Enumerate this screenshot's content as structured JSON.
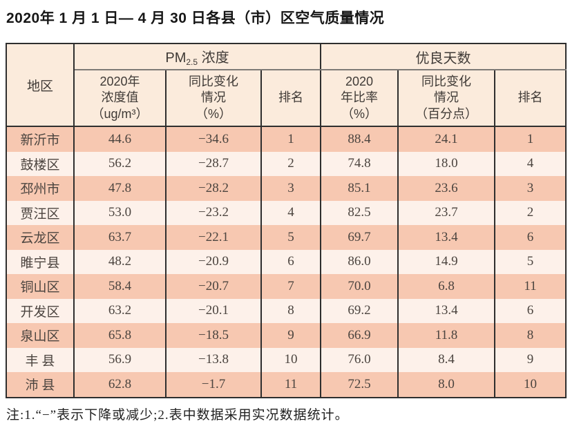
{
  "title": "2020年 1 月 1 日— 4 月 30 日各县（市）区空气质量情况",
  "note": "注:1.“−”表示下降或减少;2.表中数据采用实况数据统计。",
  "colors": {
    "row_salmon": "#f7c8b1",
    "row_light": "#fdf1ea",
    "header_bg": "#fbebdc",
    "border": "#2e2e2e",
    "text": "#4b443f"
  },
  "table": {
    "header": {
      "region": "地区",
      "pm_group_prefix": "PM",
      "pm_group_sub": "2.5",
      "pm_group_suffix": " 浓度",
      "good_days_group": "优良天数",
      "pm_value": "2020年\n浓度值\n（ug/m³）",
      "pm_change": "同比变化\n情况\n（%）",
      "pm_rank": "排名",
      "gd_ratio": "2020\n年比率\n（%）",
      "gd_change": "同比变化\n情况\n（百分点）",
      "gd_rank": "排名"
    },
    "rows": [
      {
        "region": "新沂市",
        "pm_value": "44.6",
        "pm_change": "−34.6",
        "pm_rank": "1",
        "gd_ratio": "88.4",
        "gd_change": "24.1",
        "gd_rank": "1"
      },
      {
        "region": "鼓楼区",
        "pm_value": "56.2",
        "pm_change": "−28.7",
        "pm_rank": "2",
        "gd_ratio": "74.8",
        "gd_change": "18.0",
        "gd_rank": "4"
      },
      {
        "region": "邳州市",
        "pm_value": "47.8",
        "pm_change": "−28.2",
        "pm_rank": "3",
        "gd_ratio": "85.1",
        "gd_change": "23.6",
        "gd_rank": "3"
      },
      {
        "region": "贾汪区",
        "pm_value": "53.0",
        "pm_change": "−23.2",
        "pm_rank": "4",
        "gd_ratio": "82.5",
        "gd_change": "23.7",
        "gd_rank": "2"
      },
      {
        "region": "云龙区",
        "pm_value": "63.7",
        "pm_change": "−22.1",
        "pm_rank": "5",
        "gd_ratio": "69.7",
        "gd_change": "13.4",
        "gd_rank": "6"
      },
      {
        "region": "睢宁县",
        "pm_value": "48.2",
        "pm_change": "−20.9",
        "pm_rank": "6",
        "gd_ratio": "86.0",
        "gd_change": "14.9",
        "gd_rank": "5"
      },
      {
        "region": "铜山区",
        "pm_value": "58.4",
        "pm_change": "−20.7",
        "pm_rank": "7",
        "gd_ratio": "70.0",
        "gd_change": "6.8",
        "gd_rank": "11"
      },
      {
        "region": "开发区",
        "pm_value": "63.2",
        "pm_change": "−20.1",
        "pm_rank": "8",
        "gd_ratio": "69.2",
        "gd_change": "13.4",
        "gd_rank": "6"
      },
      {
        "region": "泉山区",
        "pm_value": "65.8",
        "pm_change": "−18.5",
        "pm_rank": "9",
        "gd_ratio": "66.9",
        "gd_change": "11.8",
        "gd_rank": "8"
      },
      {
        "region": "丰 县",
        "pm_value": "56.9",
        "pm_change": "−13.8",
        "pm_rank": "10",
        "gd_ratio": "76.0",
        "gd_change": "8.4",
        "gd_rank": "9"
      },
      {
        "region": "沛 县",
        "pm_value": "62.8",
        "pm_change": "−1.7",
        "pm_rank": "11",
        "gd_ratio": "72.5",
        "gd_change": "8.0",
        "gd_rank": "10"
      }
    ]
  }
}
